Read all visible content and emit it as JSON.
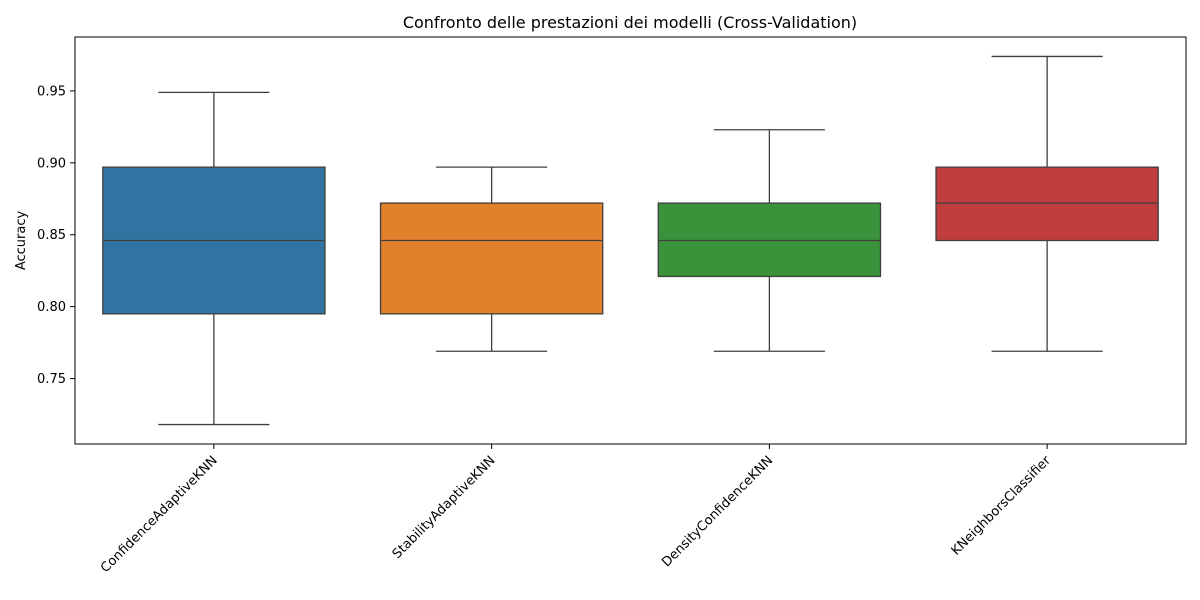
{
  "chart_data": {
    "type": "box",
    "title": "Confronto delle prestazioni dei modelli (Cross-Validation)",
    "xlabel": "",
    "ylabel": "Accuracy",
    "ylim": [
      0.7045,
      0.9875
    ],
    "yticks": [
      0.75,
      0.8,
      0.85,
      0.9,
      0.95
    ],
    "ytick_labels": [
      "0.75",
      "0.80",
      "0.85",
      "0.90",
      "0.95"
    ],
    "grid": false,
    "categories": [
      "ConfidenceAdaptiveKNN",
      "StabilityAdaptiveKNN",
      "DensityConfidenceKNN",
      "KNeighborsClassifier"
    ],
    "boxes": [
      {
        "category": "ConfidenceAdaptiveKNN",
        "whislo": 0.718,
        "q1": 0.795,
        "median": 0.846,
        "q3": 0.897,
        "whishi": 0.949,
        "color": "#3274a1"
      },
      {
        "category": "StabilityAdaptiveKNN",
        "whislo": 0.769,
        "q1": 0.795,
        "median": 0.846,
        "q3": 0.872,
        "whishi": 0.897,
        "color": "#e1812c"
      },
      {
        "category": "DensityConfidenceKNN",
        "whislo": 0.769,
        "q1": 0.821,
        "median": 0.846,
        "q3": 0.872,
        "whishi": 0.923,
        "color": "#3a923a"
      },
      {
        "category": "KNeighborsClassifier",
        "whislo": 0.769,
        "q1": 0.846,
        "median": 0.872,
        "q3": 0.897,
        "whishi": 0.974,
        "color": "#c03d3e"
      }
    ]
  }
}
